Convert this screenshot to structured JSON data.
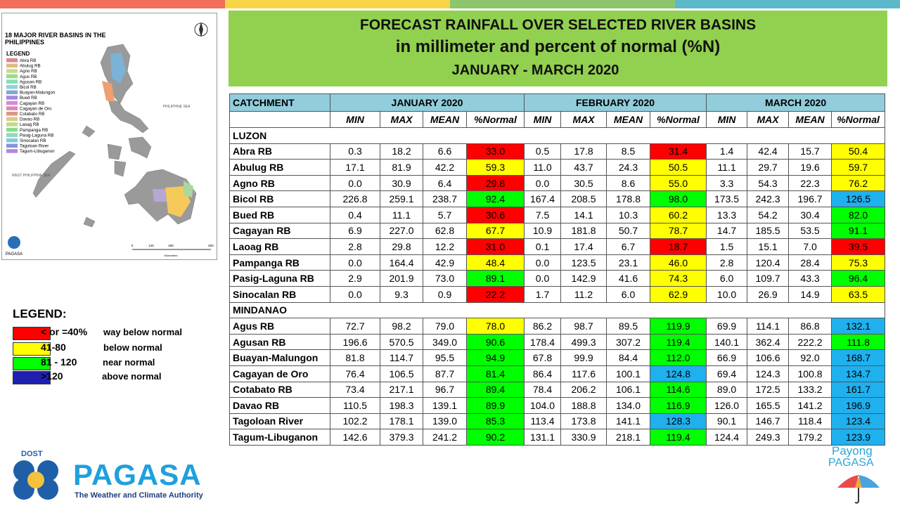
{
  "header": {
    "lines": [
      "FORECAST RAINFALL OVER SELECTED RIVER BASINS",
      "in millimeter  and percent of normal (%N)",
      "JANUARY  - MARCH 2020"
    ]
  },
  "map": {
    "title": "18 MAJOR RIVER BASINS IN THE PHILIPPINES",
    "legend_title": "LEGEND",
    "items": [
      "Abra RB",
      "Abulug RB",
      "Agno RB",
      "Agus RB",
      "Agusan RB",
      "Bicol RB",
      "Buayan-Malungon",
      "Bued RB",
      "Cagayan RB",
      "Cagayan de Oro",
      "Cotabato RB",
      "Davao RB",
      "Laoag RB",
      "Pampanga RB",
      "Pasig-Laguna RB",
      "Sinocalan RB",
      "Tagoloan River",
      "Tagum-Libuganon"
    ],
    "sea_east": "PHILIPPINE SEA",
    "sea_west": "WEST PHILIPPINE SEA",
    "logo": "PAGASA",
    "scale": [
      "0",
      "125",
      "250",
      "500"
    ],
    "scale_unit": "Kilometers"
  },
  "legend": {
    "title": "LEGEND:",
    "items": [
      {
        "range": "< or =40%",
        "label": "way below normal",
        "color": "#ff0000"
      },
      {
        "range": "41-80",
        "label": "below normal",
        "color": "#ffff00"
      },
      {
        "range": "81 - 120",
        "label": "near normal",
        "color": "#00ff00"
      },
      {
        "range": ">120",
        "label": "above normal",
        "color": "#2020b0"
      }
    ]
  },
  "table": {
    "catchment": "CATCHMENT",
    "months": [
      "JANUARY 2020",
      "FEBRUARY 2020",
      "MARCH 2020"
    ],
    "columns": [
      "MIN",
      "MAX",
      "MEAN",
      "%Normal"
    ],
    "sections": [
      {
        "name": "LUZON",
        "rows": [
          {
            "name": "Abra RB",
            "values": [
              "0.3",
              "18.2",
              "6.6",
              "33.0",
              "0.5",
              "17.8",
              "8.5",
              "31.4",
              "1.4",
              "42.4",
              "15.7",
              "50.4"
            ],
            "colors": [
              "#ff0000",
              "#ff0000",
              "#ffff00"
            ]
          },
          {
            "name": "Abulug RB",
            "values": [
              "17.1",
              "81.9",
              "42.2",
              "59.3",
              "11.0",
              "43.7",
              "24.3",
              "50.5",
              "11.1",
              "29.7",
              "19.6",
              "59.7"
            ],
            "colors": [
              "#ffff00",
              "#ffff00",
              "#ffff00"
            ]
          },
          {
            "name": "Agno RB",
            "values": [
              "0.0",
              "30.9",
              "6.4",
              "29.8",
              "0.0",
              "30.5",
              "8.6",
              "55.0",
              "3.3",
              "54.3",
              "22.3",
              "76.2"
            ],
            "colors": [
              "#ff0000",
              "#ffff00",
              "#ffff00"
            ]
          },
          {
            "name": "Bicol RB",
            "values": [
              "226.8",
              "259.1",
              "238.7",
              "92.4",
              "167.4",
              "208.5",
              "178.8",
              "98.0",
              "173.5",
              "242.3",
              "196.7",
              "126.5"
            ],
            "colors": [
              "#00ff00",
              "#00ff00",
              "#1fb0ee"
            ]
          },
          {
            "name": "Bued RB",
            "values": [
              "0.4",
              "11.1",
              "5.7",
              "30.6",
              "7.5",
              "14.1",
              "10.3",
              "60.2",
              "13.3",
              "54.2",
              "30.4",
              "82.0"
            ],
            "colors": [
              "#ff0000",
              "#ffff00",
              "#00ff00"
            ]
          },
          {
            "name": "Cagayan RB",
            "values": [
              "6.9",
              "227.0",
              "62.8",
              "67.7",
              "10.9",
              "181.8",
              "50.7",
              "78.7",
              "14.7",
              "185.5",
              "53.5",
              "91.1"
            ],
            "colors": [
              "#ffff00",
              "#ffff00",
              "#00ff00"
            ]
          },
          {
            "name": "Laoag RB",
            "values": [
              "2.8",
              "29.8",
              "12.2",
              "31.0",
              "0.1",
              "17.4",
              "6.7",
              "18.7",
              "1.5",
              "15.1",
              "7.0",
              "39.5"
            ],
            "colors": [
              "#ff0000",
              "#ff0000",
              "#ff0000"
            ]
          },
          {
            "name": "Pampanga RB",
            "values": [
              "0.0",
              "164.4",
              "42.9",
              "48.4",
              "0.0",
              "123.5",
              "23.1",
              "46.0",
              "2.8",
              "120.4",
              "28.4",
              "75.3"
            ],
            "colors": [
              "#ffff00",
              "#ffff00",
              "#ffff00"
            ]
          },
          {
            "name": "Pasig-Laguna RB",
            "values": [
              "2.9",
              "201.9",
              "73.0",
              "89.1",
              "0.0",
              "142.9",
              "41.6",
              "74.3",
              "6.0",
              "109.7",
              "43.3",
              "96.4"
            ],
            "colors": [
              "#00ff00",
              "#ffff00",
              "#00ff00"
            ]
          },
          {
            "name": "Sinocalan RB",
            "values": [
              "0.0",
              "9.3",
              "0.9",
              "22.2",
              "1.7",
              "11.2",
              "6.0",
              "62.9",
              "10.0",
              "26.9",
              "14.9",
              "63.5"
            ],
            "colors": [
              "#ff0000",
              "#ffff00",
              "#ffff00"
            ]
          }
        ]
      },
      {
        "name": "MINDANAO",
        "rows": [
          {
            "name": "Agus RB",
            "values": [
              "72.7",
              "98.2",
              "79.0",
              "78.0",
              "86.2",
              "98.7",
              "89.5",
              "119.9",
              "69.9",
              "114.1",
              "86.8",
              "132.1"
            ],
            "colors": [
              "#ffff00",
              "#00ff00",
              "#1fb0ee"
            ]
          },
          {
            "name": "Agusan RB",
            "values": [
              "196.6",
              "570.5",
              "349.0",
              "90.6",
              "178.4",
              "499.3",
              "307.2",
              "119.4",
              "140.1",
              "362.4",
              "222.2",
              "111.8"
            ],
            "colors": [
              "#00ff00",
              "#00ff00",
              "#00ff00"
            ]
          },
          {
            "name": "Buayan-Malungon",
            "values": [
              "81.8",
              "114.7",
              "95.5",
              "94.9",
              "67.8",
              "99.9",
              "84.4",
              "112.0",
              "66.9",
              "106.6",
              "92.0",
              "168.7"
            ],
            "colors": [
              "#00ff00",
              "#00ff00",
              "#1fb0ee"
            ]
          },
          {
            "name": "Cagayan de Oro",
            "values": [
              "76.4",
              "106.5",
              "87.7",
              "81.4",
              "86.4",
              "117.6",
              "100.1",
              "124.8",
              "69.4",
              "124.3",
              "100.8",
              "134.7"
            ],
            "colors": [
              "#00ff00",
              "#1fb0ee",
              "#1fb0ee"
            ]
          },
          {
            "name": "Cotabato RB",
            "values": [
              "73.4",
              "217.1",
              "96.7",
              "89.4",
              "78.4",
              "206.2",
              "106.1",
              "114.6",
              "89.0",
              "172.5",
              "133.2",
              "161.7"
            ],
            "colors": [
              "#00ff00",
              "#00ff00",
              "#1fb0ee"
            ]
          },
          {
            "name": "Davao RB",
            "values": [
              "110.5",
              "198.3",
              "139.1",
              "89.9",
              "104.0",
              "188.8",
              "134.0",
              "116.9",
              "126.0",
              "165.5",
              "141.2",
              "196.9"
            ],
            "colors": [
              "#00ff00",
              "#00ff00",
              "#1fb0ee"
            ]
          },
          {
            "name": "Tagoloan River",
            "values": [
              "102.2",
              "178.1",
              "139.0",
              "85.3",
              "113.4",
              "173.8",
              "141.1",
              "128.3",
              "90.1",
              "146.7",
              "118.4",
              "123.4"
            ],
            "colors": [
              "#00ff00",
              "#1fb0ee",
              "#1fb0ee"
            ]
          },
          {
            "name": "Tagum-Libuganon",
            "values": [
              "142.6",
              "379.3",
              "241.2",
              "90.2",
              "131.1",
              "330.9",
              "218.1",
              "119.4",
              "124.4",
              "249.3",
              "179.2",
              "123.9"
            ],
            "colors": [
              "#00ff00",
              "#00ff00",
              "#1fb0ee"
            ]
          }
        ]
      }
    ]
  },
  "footer": {
    "dost": "DOST",
    "brand": "PAGASA",
    "tagline": "The Weather and Climate Authority",
    "payong": "Payong",
    "payong_brand": "PAGASA"
  }
}
